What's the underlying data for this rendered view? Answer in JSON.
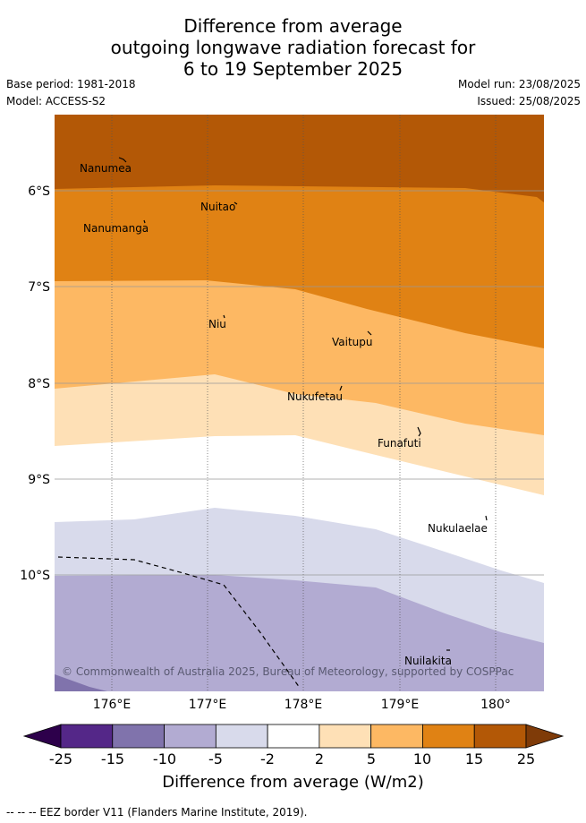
{
  "title": {
    "line1": "Difference from average",
    "line2": "outgoing longwave radiation forecast for",
    "line3": "6 to 19 September 2025"
  },
  "meta": {
    "base_period": "Base period: 1981-2018",
    "model": "Model: ACCESS-S2",
    "model_run": "Model run: 23/08/2025",
    "issued": "Issued: 25/08/2025"
  },
  "map": {
    "lat_ticks": [
      "6°S",
      "7°S",
      "8°S",
      "9°S",
      "10°S"
    ],
    "lon_ticks": [
      "176°E",
      "177°E",
      "178°E",
      "179°E",
      "180°"
    ],
    "places": [
      "Nanumea",
      "Nuitao",
      "Nanumanga",
      "Niu",
      "Vaitupu",
      "Nukufetau",
      "Funafuti",
      "Nukulaelae",
      "Nuilakita"
    ],
    "copyright": "© Commonwealth of Australia 2025, Bureau of Meteorology, supported by COSPPac",
    "colors": {
      "c25": "#b35806",
      "c15": "#e08214",
      "c10": "#fdb863",
      "c5": "#fee0b6",
      "c0": "#ffffff",
      "cm5": "#d8daeb",
      "cm10": "#b2abd2",
      "cm15": "#8073ac",
      "cm25": "#542788"
    }
  },
  "colorbar": {
    "labels": [
      "-25",
      "-15",
      "-10",
      "-5",
      "-2",
      "2",
      "5",
      "10",
      "15",
      "25"
    ],
    "colors": [
      "#542788",
      "#8073ac",
      "#b2abd2",
      "#d8daeb",
      "#ffffff",
      "#fee0b6",
      "#fdb863",
      "#e08214",
      "#b35806"
    ],
    "low_extend_color": "#2d004b",
    "high_extend_color": "#7f3b08",
    "title": "Difference from average (W/m2)"
  },
  "footer": "--  --  -- EEZ border V11 (Flanders Marine Institute, 2019)."
}
